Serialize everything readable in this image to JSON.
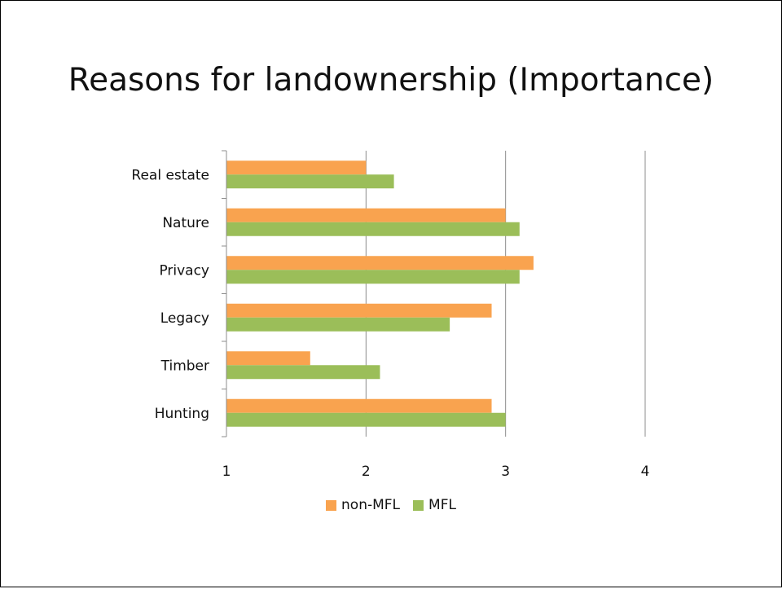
{
  "chart_data": {
    "type": "bar",
    "orientation": "horizontal",
    "title": "Reasons for landownership (Importance)",
    "categories": [
      "Real estate",
      "Nature",
      "Privacy",
      "Legacy",
      "Timber",
      "Hunting"
    ],
    "series": [
      {
        "name": "non-MFL",
        "color": "#F9A34F",
        "values": [
          2.0,
          3.0,
          3.2,
          2.9,
          1.6,
          2.9
        ]
      },
      {
        "name": "MFL",
        "color": "#9BBE59",
        "values": [
          2.2,
          3.1,
          3.1,
          2.6,
          2.1,
          3.0
        ]
      }
    ],
    "xlim": [
      1,
      4
    ],
    "xticks": [
      "1",
      "2",
      "3",
      "4"
    ],
    "grid": true,
    "legend_position": "bottom"
  }
}
